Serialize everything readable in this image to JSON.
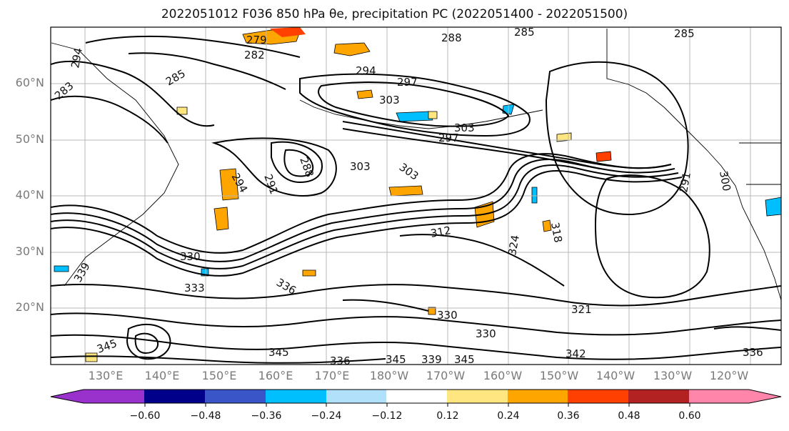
{
  "title": "2022051012 F036 850 hPa θe, precipitation PC (2022051400 - 2022051500)",
  "map": {
    "lat_labels": [
      "60°N",
      "50°N",
      "40°N",
      "30°N",
      "20°N"
    ],
    "lon_labels": [
      "130°E",
      "140°E",
      "150°E",
      "160°E",
      "170°E",
      "180°W",
      "170°W",
      "160°W",
      "150°W",
      "140°W",
      "130°W",
      "120°W"
    ],
    "contour_labels": [
      "282",
      "279",
      "288",
      "285",
      "285",
      "294",
      "294",
      "285",
      "283",
      "297",
      "303",
      "303",
      "297",
      "288",
      "291",
      "294",
      "303",
      "303",
      "312",
      "324",
      "318",
      "300",
      "291",
      "330",
      "339",
      "333",
      "336",
      "330",
      "330",
      "321",
      "342",
      "345",
      "345",
      "336",
      "339",
      "345",
      "336",
      "345"
    ],
    "grid": true,
    "coastlines": true
  },
  "colorbar": {
    "colors": [
      "#9932cc",
      "#00008b",
      "#3a55c8",
      "#00bfff",
      "#b0e0fa",
      "#ffffff",
      "#ffe680",
      "#ffa500",
      "#ff4000",
      "#b22222",
      "#ff85aa"
    ],
    "tick_labels": [
      "−0.60",
      "−0.48",
      "−0.36",
      "−0.24",
      "−0.12",
      "0.12",
      "0.24",
      "0.36",
      "0.48",
      "0.60"
    ],
    "extend": "both"
  }
}
